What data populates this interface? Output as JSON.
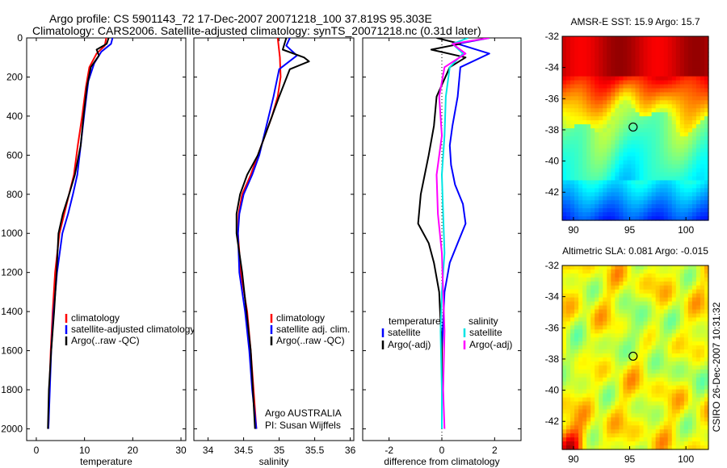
{
  "header": {
    "line1": "Argo profile: CS 5901143_72 17-Dec-2007 20071218_100 37.819S 95.303E",
    "line2": "Climatology: CARS2006. Satellite-adjusted climatology: synTS_20071218.nc (0.31d later)"
  },
  "side_text": "CSIRO 26-Dec-2007 10:31:32",
  "colors": {
    "climatology": "#ff0000",
    "satellite": "#0000ff",
    "argo": "#000000",
    "sat_salinity": "#00e5e5",
    "argo_salinity": "#ff00ff"
  },
  "chart_data": [
    {
      "type": "line",
      "xlabel": "temperature",
      "xlim": [
        -2,
        31
      ],
      "ylim": [
        2060,
        0
      ],
      "x_ticks": [
        "0",
        "10",
        "20",
        "30"
      ],
      "y_ticks": [
        "0",
        "200",
        "400",
        "600",
        "800",
        "1000",
        "1200",
        "1400",
        "1600",
        "1800",
        "2000"
      ],
      "legend": [
        "climatology",
        "satellite-adjusted climatology",
        "Argo(..raw -QC)"
      ],
      "series": [
        {
          "name": "climatology",
          "color": "#ff0000",
          "x": [
            14.5,
            14.2,
            12.5,
            11,
            10.3,
            9.5,
            8.6,
            7.8,
            6.8,
            5.8,
            4.8,
            3.9,
            3.4,
            3.0,
            2.7,
            2.5
          ],
          "y": [
            0,
            40,
            80,
            150,
            250,
            400,
            550,
            700,
            800,
            900,
            1000,
            1200,
            1400,
            1600,
            1800,
            2000
          ]
        },
        {
          "name": "satellite-adjusted climatology",
          "color": "#0000ff",
          "x": [
            15.8,
            15.5,
            13.5,
            12,
            10.8,
            10,
            9.2,
            8.5,
            7.6,
            6.6,
            5.4,
            4.3,
            3.6,
            3.1,
            2.8,
            2.5
          ],
          "y": [
            0,
            30,
            70,
            130,
            220,
            380,
            550,
            700,
            800,
            900,
            1000,
            1200,
            1400,
            1600,
            1800,
            2000
          ]
        },
        {
          "name": "Argo(..raw -QC)",
          "color": "#000000",
          "x": [
            15.0,
            14.6,
            12.5,
            13.0,
            11.3,
            10.5,
            9.8,
            9.2,
            8.0,
            6.8,
            5.5,
            4.6,
            4.2,
            3.7,
            3.1,
            2.6,
            2.4
          ],
          "y": [
            0,
            30,
            60,
            90,
            150,
            250,
            400,
            550,
            700,
            800,
            900,
            1000,
            1200,
            1400,
            1600,
            1800,
            2000
          ]
        }
      ]
    },
    {
      "type": "line",
      "xlabel": "salinity",
      "xlim": [
        33.8,
        36.05
      ],
      "ylim": [
        2060,
        0
      ],
      "x_ticks": [
        "34",
        "34.5",
        "35",
        "35.5",
        "36"
      ],
      "legend": [
        "climatology",
        "satellite adj. clim.",
        "Argo(..raw -QC)"
      ],
      "annotation": [
        "Argo AUSTRALIA",
        "PI: Susan Wijffels"
      ],
      "series": [
        {
          "name": "climatology",
          "color": "#ff0000",
          "x": [
            34.98,
            35.01,
            35.02,
            34.98,
            34.9,
            34.8,
            34.7,
            34.6,
            34.48,
            34.43,
            34.42,
            34.46,
            34.55,
            34.6,
            34.64,
            34.68
          ],
          "y": [
            0,
            100,
            200,
            300,
            400,
            500,
            600,
            700,
            800,
            900,
            1000,
            1200,
            1400,
            1600,
            1800,
            2000
          ]
        },
        {
          "name": "satellite adj. clim.",
          "color": "#0000ff",
          "x": [
            35.15,
            35.1,
            35.25,
            35.0,
            34.92,
            34.82,
            34.72,
            34.62,
            34.5,
            34.44,
            34.42,
            34.44,
            34.52,
            34.58,
            34.62,
            34.68
          ],
          "y": [
            0,
            40,
            90,
            160,
            300,
            450,
            600,
            700,
            800,
            900,
            1000,
            1200,
            1400,
            1600,
            1800,
            2000
          ]
        },
        {
          "name": "Argo(..raw -QC)",
          "color": "#000000",
          "x": [
            35.1,
            35.05,
            35.35,
            35.42,
            35.15,
            35.0,
            34.85,
            34.7,
            34.55,
            34.45,
            34.4,
            34.4,
            34.48,
            34.54,
            34.6,
            34.66
          ],
          "y": [
            0,
            60,
            100,
            120,
            160,
            300,
            450,
            600,
            700,
            800,
            900,
            1000,
            1200,
            1400,
            1600,
            2000
          ]
        }
      ]
    },
    {
      "type": "line",
      "xlabel": "difference from climatology",
      "xlim": [
        -3,
        3
      ],
      "ylim": [
        2060,
        0
      ],
      "x_ticks": [
        "-2",
        "0",
        "2"
      ],
      "legend_temperature": {
        "heading": "temperature",
        "entries": [
          "satellite",
          "Argo(-adj)"
        ]
      },
      "legend_salinity": {
        "heading": "salinity",
        "entries": [
          "satellite",
          "Argo(-adj)"
        ]
      },
      "series": [
        {
          "name": "temperature satellite",
          "color": "#0000ff",
          "x": [
            1.8,
            0.6,
            1.8,
            0.7,
            0.6,
            0.4,
            0.3,
            0.35,
            0.5,
            0.8,
            0.9,
            0.6,
            0.3,
            0.1,
            0.0,
            0.0
          ],
          "y": [
            0,
            30,
            80,
            150,
            300,
            450,
            550,
            650,
            750,
            850,
            950,
            1050,
            1150,
            1300,
            1600,
            2000
          ]
        },
        {
          "name": "temperature Argo(-adj)",
          "color": "#000000",
          "x": [
            -0.2,
            0.7,
            -0.4,
            0.9,
            0.3,
            -0.2,
            -0.3,
            -0.5,
            -0.8,
            -0.9,
            -0.5,
            -0.3,
            -0.1,
            0.0,
            0.0
          ],
          "y": [
            0,
            30,
            60,
            100,
            150,
            300,
            450,
            600,
            800,
            950,
            1050,
            1150,
            1300,
            1600,
            2000
          ]
        },
        {
          "name": "salinity satellite",
          "color": "#00e5e5",
          "x": [
            1.0,
            0.4,
            0.8,
            0.3,
            0.15,
            0.1,
            0.0,
            0.05,
            0.1,
            0.0,
            -0.05,
            0.0,
            0.0
          ],
          "y": [
            0,
            30,
            80,
            150,
            300,
            500,
            700,
            900,
            1100,
            1300,
            1500,
            1800,
            2000
          ]
        },
        {
          "name": "salinity Argo(-adj)",
          "color": "#ff00ff",
          "x": [
            1.8,
            0.4,
            0.9,
            0.1,
            -0.1,
            0.0,
            -0.2,
            -0.15,
            0.0,
            0.05,
            0.1,
            0.05,
            0.1
          ],
          "y": [
            0,
            30,
            80,
            150,
            300,
            500,
            700,
            900,
            1100,
            1300,
            1500,
            1800,
            2000
          ]
        }
      ]
    },
    {
      "type": "heatmap",
      "title": "AMSR-E SST: 15.9 Argo: 15.7",
      "xlim": [
        89,
        102
      ],
      "ylim": [
        -43.8,
        -32
      ],
      "x_ticks": [
        "90",
        "95",
        "100"
      ],
      "y_ticks": [
        "-32",
        "-34",
        "-36",
        "-38",
        "-40",
        "-42"
      ],
      "marker": {
        "lon": 95.303,
        "lat": -37.819
      },
      "colormap": "jet"
    },
    {
      "type": "heatmap",
      "title": "Altimetric SLA: 0.081 Argo: -0.015",
      "xlim": [
        89,
        102
      ],
      "ylim": [
        -43.8,
        -32
      ],
      "x_ticks": [
        "90",
        "95",
        "100"
      ],
      "y_ticks": [
        "-32",
        "-34",
        "-36",
        "-38",
        "-40",
        "-42"
      ],
      "marker": {
        "lon": 95.303,
        "lat": -37.819
      },
      "colormap": "jet"
    }
  ]
}
